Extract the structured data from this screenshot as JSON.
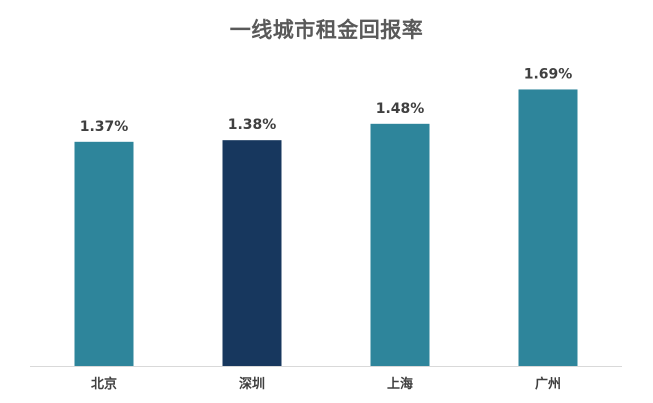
{
  "chart_data": {
    "type": "bar",
    "title": "一线城市租金回报率",
    "categories": [
      "北京",
      "深圳",
      "上海",
      "广州"
    ],
    "values": [
      1.37,
      1.38,
      1.48,
      1.69
    ],
    "data_labels": [
      "1.37%",
      "1.38%",
      "1.48%",
      "1.69%"
    ],
    "ylim": [
      0,
      1.98
    ],
    "highlight_index": 1,
    "colors": {
      "bar": "#2e859b",
      "highlight": "#17375e",
      "axis": "#d9d9d9"
    },
    "xlabel": "",
    "ylabel": "",
    "grid": false,
    "legend": "none"
  }
}
